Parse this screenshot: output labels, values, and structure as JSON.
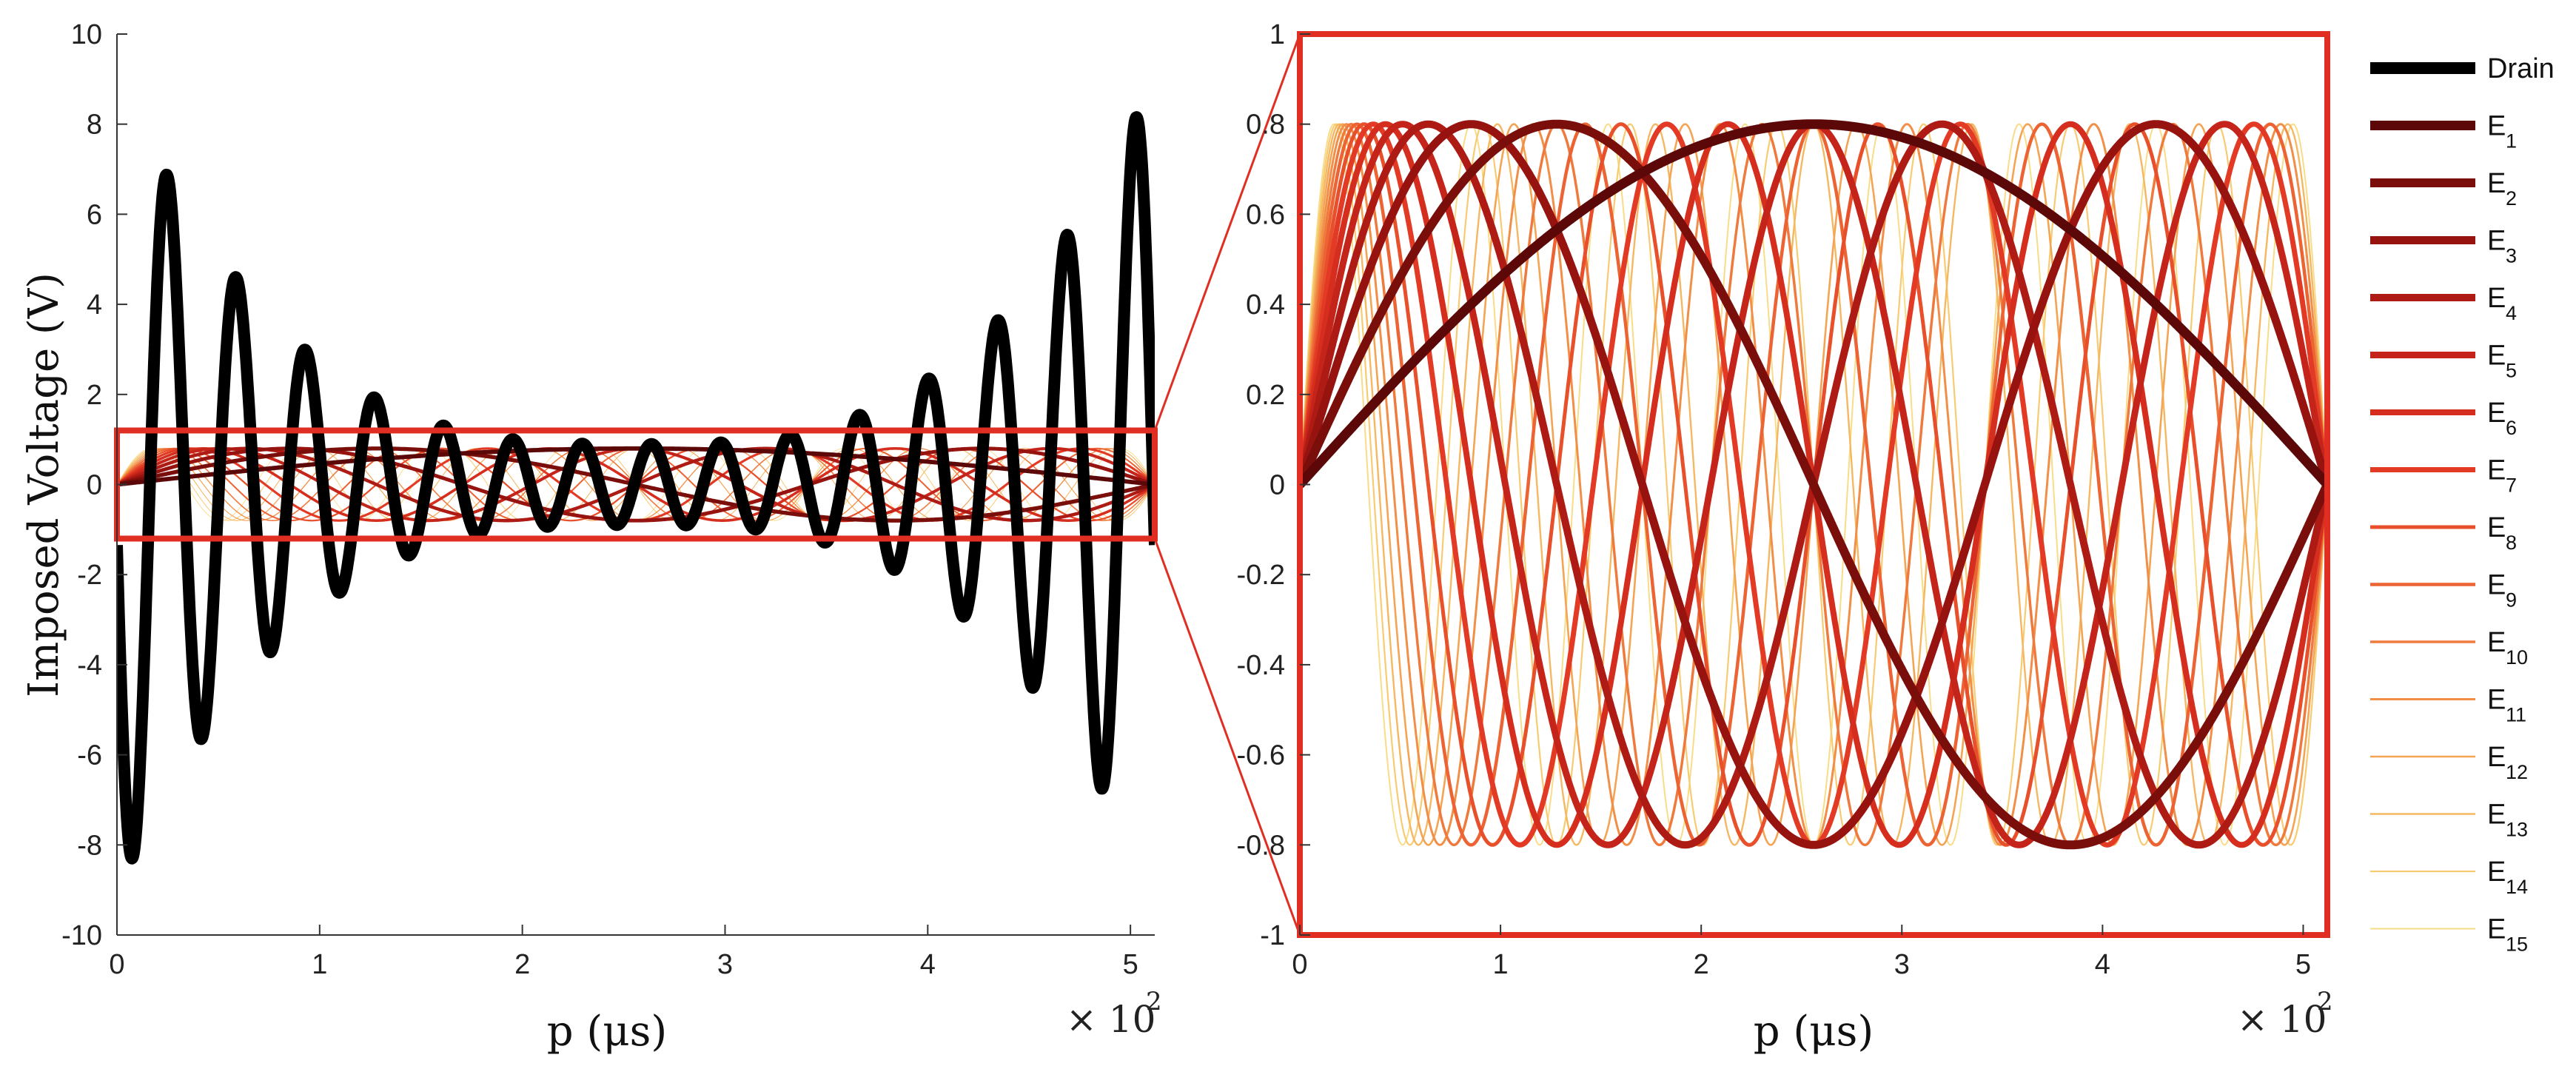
{
  "chart_data": [
    {
      "panel": "full",
      "type": "line",
      "xlabel": "p (μs)",
      "ylabel": "Imposed Voltage (V)",
      "x_multiplier_label": "× 10",
      "x_multiplier_exp": "2",
      "xlim": [
        0,
        5.12
      ],
      "ylim": [
        -10,
        10
      ],
      "xticks": [
        0,
        1,
        2,
        3,
        4,
        5
      ],
      "yticks": [
        -10,
        -8,
        -6,
        -4,
        -2,
        0,
        2,
        4,
        6,
        8,
        10
      ],
      "zoom_box": {
        "xlim": [
          0,
          5.12
        ],
        "ylim": [
          -1.2,
          1.2
        ]
      },
      "grid": false
    },
    {
      "panel": "zoom",
      "type": "line",
      "xlabel": "p (μs)",
      "x_multiplier_label": "× 10",
      "x_multiplier_exp": "2",
      "xlim": [
        0,
        5.12
      ],
      "ylim": [
        -1,
        1
      ],
      "xticks": [
        0,
        1,
        2,
        3,
        4,
        5
      ],
      "yticks": [
        -1,
        -0.8,
        -0.6,
        -0.4,
        -0.2,
        0,
        0.2,
        0.4,
        0.6,
        0.8,
        1
      ],
      "grid": false,
      "legend_position": "right-outside",
      "series": [
        {
          "name": "Drain",
          "sub": "",
          "color": "#000000",
          "kind": "drain_chirp",
          "amplitude_range": [
            9,
            0.9
          ]
        },
        {
          "name": "E",
          "sub": "1",
          "color": "#5c0808",
          "amplitude": 0.8,
          "cycles": 1
        },
        {
          "name": "E",
          "sub": "2",
          "color": "#7a0e0b",
          "amplitude": 0.8,
          "cycles": 2
        },
        {
          "name": "E",
          "sub": "3",
          "color": "#96130f",
          "amplitude": 0.8,
          "cycles": 3
        },
        {
          "name": "E",
          "sub": "4",
          "color": "#ad1b14",
          "amplitude": 0.8,
          "cycles": 4
        },
        {
          "name": "E",
          "sub": "5",
          "color": "#c42419",
          "amplitude": 0.8,
          "cycles": 5
        },
        {
          "name": "E",
          "sub": "6",
          "color": "#d52e1e",
          "amplitude": 0.8,
          "cycles": 6
        },
        {
          "name": "E",
          "sub": "7",
          "color": "#e23a24",
          "amplitude": 0.8,
          "cycles": 7
        },
        {
          "name": "E",
          "sub": "8",
          "color": "#e8502c",
          "amplitude": 0.8,
          "cycles": 8
        },
        {
          "name": "E",
          "sub": "9",
          "color": "#ec6434",
          "amplitude": 0.8,
          "cycles": 9
        },
        {
          "name": "E",
          "sub": "10",
          "color": "#ef7a3e",
          "amplitude": 0.8,
          "cycles": 10
        },
        {
          "name": "E",
          "sub": "11",
          "color": "#f18f48",
          "amplitude": 0.8,
          "cycles": 11
        },
        {
          "name": "E",
          "sub": "12",
          "color": "#f3a454",
          "amplitude": 0.8,
          "cycles": 12
        },
        {
          "name": "E",
          "sub": "13",
          "color": "#f5b862",
          "amplitude": 0.8,
          "cycles": 13
        },
        {
          "name": "E",
          "sub": "14",
          "color": "#f7cb72",
          "amplitude": 0.8,
          "cycles": 14
        },
        {
          "name": "E",
          "sub": "15",
          "color": "#f9dc88",
          "amplitude": 0.8,
          "cycles": 15
        }
      ]
    }
  ]
}
